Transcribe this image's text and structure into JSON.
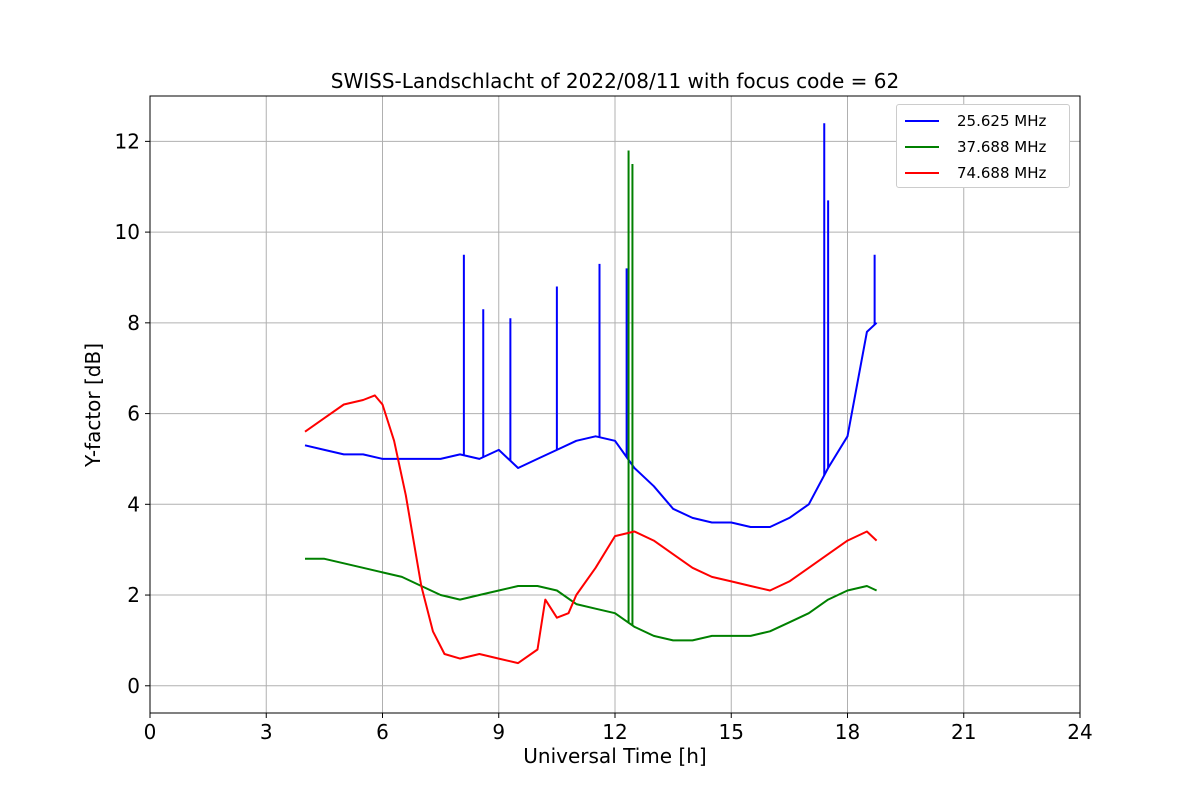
{
  "chart_data": {
    "type": "line",
    "title": "SWISS-Landschlacht of 2022/08/11 with focus code = 62",
    "xlabel": "Universal Time [h]",
    "ylabel": "Y-factor [dB]",
    "xlim": [
      0,
      24
    ],
    "ylim": [
      -0.6,
      13.0
    ],
    "xticks": [
      0,
      3,
      6,
      9,
      12,
      15,
      18,
      21,
      24
    ],
    "xtick_labels": [
      "0",
      "3",
      "6",
      "9",
      "12",
      "15",
      "18",
      "21",
      "24"
    ],
    "yticks": [
      0,
      2,
      4,
      6,
      8,
      10,
      12
    ],
    "ytick_labels": [
      "0",
      "2",
      "4",
      "6",
      "8",
      "10",
      "12"
    ],
    "grid": true,
    "legend_position": "top-right",
    "series": [
      {
        "name": "25.625 MHz",
        "color": "#0000ff",
        "x": [
          4.0,
          4.5,
          5.0,
          5.5,
          6.0,
          6.5,
          7.0,
          7.5,
          8.0,
          8.5,
          9.0,
          9.5,
          10.0,
          10.5,
          11.0,
          11.5,
          12.0,
          12.5,
          13.0,
          13.5,
          14.0,
          14.5,
          15.0,
          15.5,
          16.0,
          16.5,
          17.0,
          17.5,
          18.0,
          18.5,
          18.75
        ],
        "y": [
          5.3,
          5.2,
          5.1,
          5.1,
          5.0,
          5.0,
          5.0,
          5.0,
          5.1,
          5.0,
          5.2,
          4.8,
          5.0,
          5.2,
          5.4,
          5.5,
          5.4,
          4.8,
          4.4,
          3.9,
          3.7,
          3.6,
          3.6,
          3.5,
          3.5,
          3.7,
          4.0,
          4.8,
          5.5,
          7.8,
          8.0
        ],
        "spikes": [
          [
            8.1,
            9.5
          ],
          [
            8.6,
            8.3
          ],
          [
            9.3,
            8.1
          ],
          [
            10.5,
            8.8
          ],
          [
            11.6,
            9.3
          ],
          [
            12.3,
            9.2
          ],
          [
            17.4,
            12.4
          ],
          [
            17.5,
            10.7
          ],
          [
            18.7,
            9.5
          ]
        ]
      },
      {
        "name": "37.688 MHz",
        "color": "#008000",
        "x": [
          4.0,
          4.5,
          5.0,
          5.5,
          6.0,
          6.5,
          7.0,
          7.5,
          8.0,
          8.5,
          9.0,
          9.5,
          10.0,
          10.5,
          11.0,
          11.5,
          12.0,
          12.5,
          13.0,
          13.5,
          14.0,
          14.5,
          15.0,
          15.5,
          16.0,
          16.5,
          17.0,
          17.5,
          18.0,
          18.5,
          18.75
        ],
        "y": [
          2.8,
          2.8,
          2.7,
          2.6,
          2.5,
          2.4,
          2.2,
          2.0,
          1.9,
          2.0,
          2.1,
          2.2,
          2.2,
          2.1,
          1.8,
          1.7,
          1.6,
          1.3,
          1.1,
          1.0,
          1.0,
          1.1,
          1.1,
          1.1,
          1.2,
          1.4,
          1.6,
          1.9,
          2.1,
          2.2,
          2.1
        ],
        "spikes": [
          [
            12.35,
            11.8
          ],
          [
            12.45,
            11.5
          ]
        ]
      },
      {
        "name": "74.688 MHz",
        "color": "#ff0000",
        "x": [
          4.0,
          4.5,
          5.0,
          5.5,
          5.8,
          6.0,
          6.3,
          6.6,
          7.0,
          7.3,
          7.6,
          8.0,
          8.5,
          9.0,
          9.5,
          10.0,
          10.2,
          10.5,
          10.8,
          11.0,
          11.5,
          12.0,
          12.5,
          13.0,
          13.5,
          14.0,
          14.5,
          15.0,
          15.5,
          16.0,
          16.5,
          17.0,
          17.5,
          18.0,
          18.5,
          18.75
        ],
        "y": [
          5.6,
          5.9,
          6.2,
          6.3,
          6.4,
          6.2,
          5.4,
          4.2,
          2.2,
          1.2,
          0.7,
          0.6,
          0.7,
          0.6,
          0.5,
          0.8,
          1.9,
          1.5,
          1.6,
          2.0,
          2.6,
          3.3,
          3.4,
          3.2,
          2.9,
          2.6,
          2.4,
          2.3,
          2.2,
          2.1,
          2.3,
          2.6,
          2.9,
          3.2,
          3.4,
          3.2
        ]
      }
    ]
  }
}
